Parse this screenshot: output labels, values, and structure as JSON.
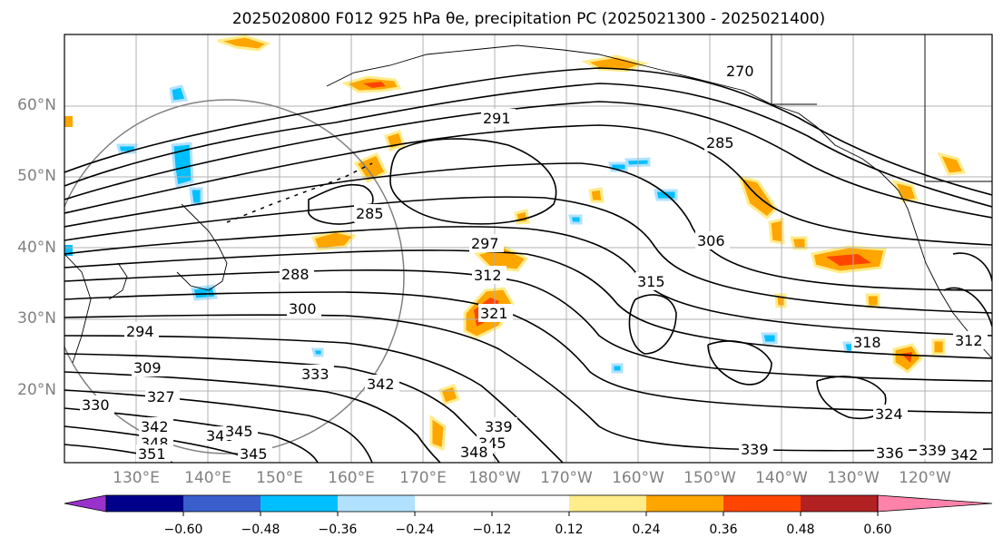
{
  "title": "2025020800 F012 925 hPa θe, precipitation PC (2025021300 - 2025021400)",
  "latitude_labels": [
    "60°N",
    "50°N",
    "40°N",
    "30°N",
    "20°N"
  ],
  "longitude_labels": [
    "130°E",
    "140°E",
    "150°E",
    "160°E",
    "170°E",
    "180°W",
    "170°W",
    "160°W",
    "150°W",
    "140°W",
    "130°W",
    "120°W"
  ],
  "colorbar": {
    "colors": [
      "#9932cc",
      "#00008b",
      "#3a5fcd",
      "#00bfff",
      "#b0e2ff",
      "#ffffff",
      "#ffec8b",
      "#ffa500",
      "#ff4500",
      "#b22222",
      "#ff82ab"
    ],
    "tick_labels": [
      "−0.60",
      "−0.48",
      "−0.36",
      "−0.24",
      "−0.12",
      "0.12",
      "0.24",
      "0.36",
      "0.48",
      "0.60"
    ]
  },
  "contour_labels": [
    {
      "text": "270"
    },
    {
      "text": "291"
    },
    {
      "text": "285"
    },
    {
      "text": "285"
    },
    {
      "text": "297"
    },
    {
      "text": "288"
    },
    {
      "text": "312"
    },
    {
      "text": "315"
    },
    {
      "text": "306"
    },
    {
      "text": "300"
    },
    {
      "text": "294"
    },
    {
      "text": "321"
    },
    {
      "text": "309"
    },
    {
      "text": "318"
    },
    {
      "text": "312"
    },
    {
      "text": "333"
    },
    {
      "text": "342"
    },
    {
      "text": "327"
    },
    {
      "text": "330"
    },
    {
      "text": "324"
    },
    {
      "text": "339"
    },
    {
      "text": "342"
    },
    {
      "text": "345"
    },
    {
      "text": "348"
    },
    {
      "text": "339"
    },
    {
      "text": "336"
    },
    {
      "text": "339"
    },
    {
      "text": "342"
    },
    {
      "text": "345"
    },
    {
      "text": "348"
    },
    {
      "text": "351"
    },
    {
      "text": "348"
    },
    {
      "text": "345"
    }
  ]
}
